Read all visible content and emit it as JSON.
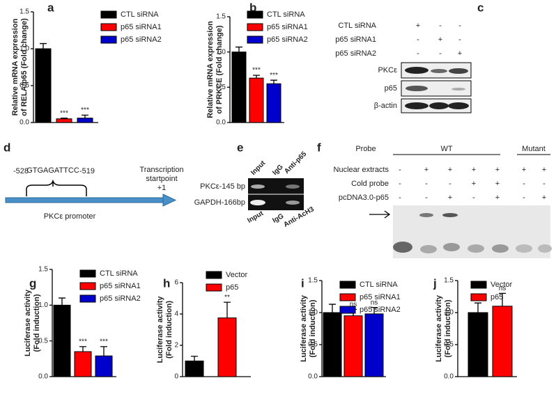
{
  "chart_data": [
    {
      "panel": "a",
      "type": "bar",
      "ylabel": [
        "Relative mRNA expression",
        "of RELA/p65 (Fold change)"
      ],
      "categories": [
        null
      ],
      "ylim": [
        0,
        1.5
      ],
      "yticks": [
        {
          "value": 0,
          "label": "0.0"
        },
        {
          "value": 0.5,
          "label": "0.5"
        },
        {
          "value": 1,
          "label": "1.0"
        },
        {
          "value": 1.5,
          "label": "1.5"
        }
      ],
      "series": [
        {
          "name": "CTL siRNA",
          "color": "#000000",
          "values": [
            1.0
          ],
          "errors": [
            0.07
          ]
        },
        {
          "name": "p65 siRNA1",
          "color": "#ff0000",
          "values": [
            0.05
          ],
          "errors": [
            0.01
          ],
          "annotations": [
            "***"
          ]
        },
        {
          "name": "p65 siRNA2",
          "color": "#0000cc",
          "values": [
            0.06
          ],
          "errors": [
            0.04
          ],
          "annotations": [
            "***"
          ]
        }
      ]
    },
    {
      "panel": "b",
      "type": "bar",
      "ylabel": [
        "Relative mRNA expression",
        "of PRKCE (Fold change)"
      ],
      "categories": [
        null
      ],
      "ylim": [
        0,
        1.5
      ],
      "yticks": [
        {
          "value": 0,
          "label": "0.0"
        },
        {
          "value": 0.5,
          "label": "0.5"
        },
        {
          "value": 1,
          "label": "1.0"
        },
        {
          "value": 1.5,
          "label": "1.5"
        }
      ],
      "series": [
        {
          "name": "CTL siRNA",
          "color": "#000000",
          "values": [
            1.0
          ],
          "errors": [
            0.07
          ]
        },
        {
          "name": "p65 siRNA1",
          "color": "#ff0000",
          "values": [
            0.63
          ],
          "errors": [
            0.04
          ],
          "annotations": [
            "***"
          ]
        },
        {
          "name": "p65 siRNA2",
          "color": "#0000cc",
          "values": [
            0.55
          ],
          "errors": [
            0.05
          ],
          "annotations": [
            "***"
          ]
        }
      ]
    },
    {
      "panel": "g",
      "type": "bar",
      "ylabel": [
        "Luciferase activity",
        "(Fold induction)"
      ],
      "categories": [
        null
      ],
      "ylim": [
        0,
        1.5
      ],
      "yticks": [
        {
          "value": 0,
          "label": "0.0"
        },
        {
          "value": 0.5,
          "label": "0.5"
        },
        {
          "value": 1,
          "label": "1.0"
        },
        {
          "value": 1.5,
          "label": "1.5"
        }
      ],
      "series": [
        {
          "name": "CTL siRNA",
          "color": "#000000",
          "values": [
            1.0
          ],
          "errors": [
            0.1
          ]
        },
        {
          "name": "p65 siRNA1",
          "color": "#ff0000",
          "values": [
            0.35
          ],
          "errors": [
            0.07
          ],
          "annotations": [
            "***"
          ]
        },
        {
          "name": "p65 siRNA2",
          "color": "#0000cc",
          "values": [
            0.29
          ],
          "errors": [
            0.13
          ],
          "annotations": [
            "***"
          ]
        }
      ]
    },
    {
      "panel": "h",
      "type": "bar",
      "ylabel": [
        "Luciferase activity",
        "(Fold induction)"
      ],
      "categories": [
        null
      ],
      "ylim": [
        0,
        6
      ],
      "yticks": [
        0,
        2,
        4,
        6
      ],
      "series": [
        {
          "name": "Vector",
          "color": "#000000",
          "values": [
            1.0
          ],
          "errors": [
            0.3
          ]
        },
        {
          "name": "p65",
          "color": "#ff0000",
          "values": [
            3.75
          ],
          "errors": [
            1.0
          ],
          "annotations": [
            "**"
          ]
        }
      ]
    },
    {
      "panel": "i",
      "type": "bar",
      "ylabel": [
        "Luciferase activity",
        "(Fold induction)"
      ],
      "categories": [
        null
      ],
      "ylim": [
        0,
        1.5
      ],
      "yticks": [
        {
          "value": 0,
          "label": "0.0"
        },
        {
          "value": 0.5,
          "label": "0.5"
        },
        {
          "value": 1,
          "label": "1.0"
        },
        {
          "value": 1.5,
          "label": "1.5"
        }
      ],
      "series": [
        {
          "name": "CTL siRNA",
          "color": "#000000",
          "values": [
            1.0
          ],
          "errors": [
            0.13
          ]
        },
        {
          "name": "p65 siRNA1",
          "color": "#ff0000",
          "values": [
            0.95
          ],
          "errors": [
            0.1
          ],
          "annotations": [
            "ns"
          ]
        },
        {
          "name": "p65 siRNA2",
          "color": "#0000cc",
          "values": [
            0.98
          ],
          "errors": [
            0.1
          ],
          "annotations": [
            "ns"
          ]
        }
      ]
    },
    {
      "panel": "j",
      "type": "bar",
      "ylabel": [
        "Luciferase activity",
        "(Fold induction)"
      ],
      "categories": [
        null
      ],
      "ylim": [
        0,
        1.5
      ],
      "yticks": [
        {
          "value": 0,
          "label": "0.0"
        },
        {
          "value": 0.5,
          "label": "0.5"
        },
        {
          "value": 1,
          "label": "1.0"
        },
        {
          "value": 1.5,
          "label": "1.5"
        }
      ],
      "series": [
        {
          "name": "Vector",
          "color": "#000000",
          "values": [
            1.0
          ],
          "errors": [
            0.15
          ]
        },
        {
          "name": "p65",
          "color": "#ff0000",
          "values": [
            1.1
          ],
          "errors": [
            0.2
          ],
          "annotations": [
            "ns"
          ]
        }
      ]
    }
  ],
  "panel_c": {
    "panel": "c",
    "conditions": [
      {
        "label": "CTL siRNA",
        "signs": [
          "+",
          "-",
          "-"
        ]
      },
      {
        "label": "p65 siRNA1",
        "signs": [
          "-",
          "+",
          "-"
        ]
      },
      {
        "label": "p65 siRNA2",
        "signs": [
          "-",
          "-",
          "+"
        ]
      }
    ],
    "blots": [
      "PKCε",
      "p65",
      "β-actin"
    ]
  },
  "panel_d": {
    "panel": "d",
    "start": "-528",
    "sequence": "GTGAGATTCC",
    "end": "-519",
    "tss": [
      "Transcription",
      "startpoint",
      "+1"
    ],
    "promoter": "PKCε promoter"
  },
  "panel_e": {
    "panel": "e",
    "top_lanes": [
      "Input",
      "IgG",
      "Anti-p65"
    ],
    "rows": [
      "PKCε-145 bp",
      "GAPDH-166bp"
    ],
    "bottom_lanes": [
      "Input",
      "IgG",
      "Anti-AcH3"
    ]
  },
  "panel_f": {
    "panel": "f",
    "probe": "Probe",
    "groups": [
      "WT",
      "Mutant"
    ],
    "conditions": [
      {
        "label": "Nuclear extracts",
        "signs": [
          "-",
          "+",
          "+",
          "+",
          "+",
          "+",
          "+"
        ]
      },
      {
        "label": "Cold probe",
        "signs": [
          "-",
          "-",
          "-",
          "+",
          "+",
          "-",
          "-"
        ]
      },
      {
        "label": "pcDNA3.0-p65",
        "signs": [
          "-",
          "-",
          "+",
          "-",
          "+",
          "-",
          "+"
        ]
      }
    ]
  }
}
